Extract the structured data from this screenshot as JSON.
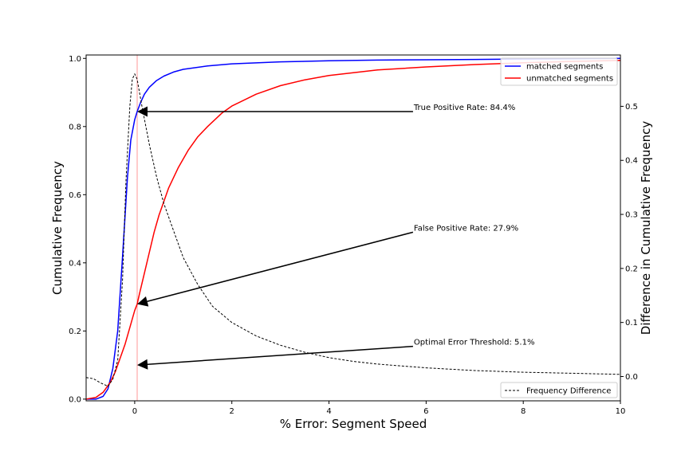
{
  "chart_data": {
    "type": "line",
    "xlabel": "% Error: Segment Speed",
    "ylabel_left": "Cumulative Frequency",
    "ylabel_right": "Difference in Cumulative Frequency",
    "xlim": [
      -1,
      10
    ],
    "ylim_left": [
      -0.005,
      1.01
    ],
    "ylim_right": [
      -0.045,
      0.595
    ],
    "x_ticks": [
      0,
      2,
      4,
      6,
      8,
      10
    ],
    "y_ticks_left": [
      0.0,
      0.2,
      0.4,
      0.6,
      0.8,
      1.0
    ],
    "y_ticks_right": [
      0.0,
      0.1,
      0.2,
      0.3,
      0.4,
      0.5
    ],
    "threshold_x": 0.051,
    "threshold_color": "#ff9999",
    "grid": false,
    "series": [
      {
        "name": "matched segments",
        "axis": "left",
        "color": "#0000ff",
        "style": "solid",
        "x": [
          -1.0,
          -0.8,
          -0.65,
          -0.55,
          -0.45,
          -0.35,
          -0.25,
          -0.15,
          -0.08,
          0.0,
          0.05,
          0.12,
          0.2,
          0.3,
          0.45,
          0.6,
          0.8,
          1.0,
          1.5,
          2.0,
          3.0,
          4.0,
          5.0,
          6.0,
          7.0,
          8.0,
          9.0,
          10.0
        ],
        "y": [
          0.0,
          0.0,
          0.008,
          0.03,
          0.09,
          0.2,
          0.42,
          0.65,
          0.76,
          0.82,
          0.844,
          0.87,
          0.895,
          0.915,
          0.935,
          0.948,
          0.96,
          0.968,
          0.978,
          0.984,
          0.99,
          0.993,
          0.995,
          0.996,
          0.997,
          0.998,
          0.999,
          1.0
        ]
      },
      {
        "name": "unmatched segments",
        "axis": "left",
        "color": "#ff0000",
        "style": "solid",
        "x": [
          -1.0,
          -0.8,
          -0.65,
          -0.5,
          -0.4,
          -0.3,
          -0.2,
          -0.1,
          0.0,
          0.05,
          0.1,
          0.2,
          0.3,
          0.4,
          0.5,
          0.7,
          0.9,
          1.1,
          1.3,
          1.5,
          1.8,
          2.0,
          2.5,
          3.0,
          3.5,
          4.0,
          5.0,
          6.0,
          7.0,
          8.0,
          9.0,
          10.0
        ],
        "y": [
          0.0,
          0.005,
          0.02,
          0.05,
          0.08,
          0.12,
          0.16,
          0.21,
          0.26,
          0.279,
          0.31,
          0.37,
          0.43,
          0.49,
          0.54,
          0.62,
          0.68,
          0.73,
          0.77,
          0.8,
          0.84,
          0.86,
          0.895,
          0.92,
          0.937,
          0.95,
          0.966,
          0.975,
          0.982,
          0.987,
          0.991,
          0.994
        ]
      },
      {
        "name": "Frequency Difference",
        "axis": "right",
        "color": "#000000",
        "style": "dashed",
        "x": [
          -1.0,
          -0.85,
          -0.7,
          -0.55,
          -0.45,
          -0.35,
          -0.25,
          -0.18,
          -0.1,
          -0.05,
          0.0,
          0.05,
          0.15,
          0.3,
          0.45,
          0.6,
          0.8,
          1.0,
          1.3,
          1.6,
          2.0,
          2.5,
          3.0,
          3.5,
          4.0,
          4.5,
          5.0,
          6.0,
          7.0,
          8.0,
          9.0,
          10.0
        ],
        "y": [
          -0.002,
          -0.004,
          -0.012,
          -0.018,
          -0.005,
          0.03,
          0.18,
          0.36,
          0.5,
          0.55,
          0.56,
          0.55,
          0.5,
          0.43,
          0.37,
          0.32,
          0.27,
          0.22,
          0.17,
          0.13,
          0.1,
          0.075,
          0.058,
          0.045,
          0.035,
          0.028,
          0.023,
          0.016,
          0.011,
          0.008,
          0.006,
          0.004
        ]
      }
    ],
    "annotations": [
      {
        "text": "True Positive Rate: 84.4%",
        "text_x": 5.73,
        "text_y": 0.844,
        "point_x": 0.051,
        "point_y": 0.844
      },
      {
        "text": "False Positive Rate: 27.9%",
        "text_x": 5.73,
        "text_y": 0.49,
        "point_x": 0.051,
        "point_y": 0.279
      },
      {
        "text": "Optimal Error Threshold: 5.1%",
        "text_x": 5.73,
        "text_y": 0.155,
        "point_x": 0.051,
        "point_y": 0.1
      }
    ],
    "legend_top_right": [
      "matched segments",
      "unmatched segments"
    ],
    "legend_bottom_right": [
      "Frequency Difference"
    ]
  }
}
